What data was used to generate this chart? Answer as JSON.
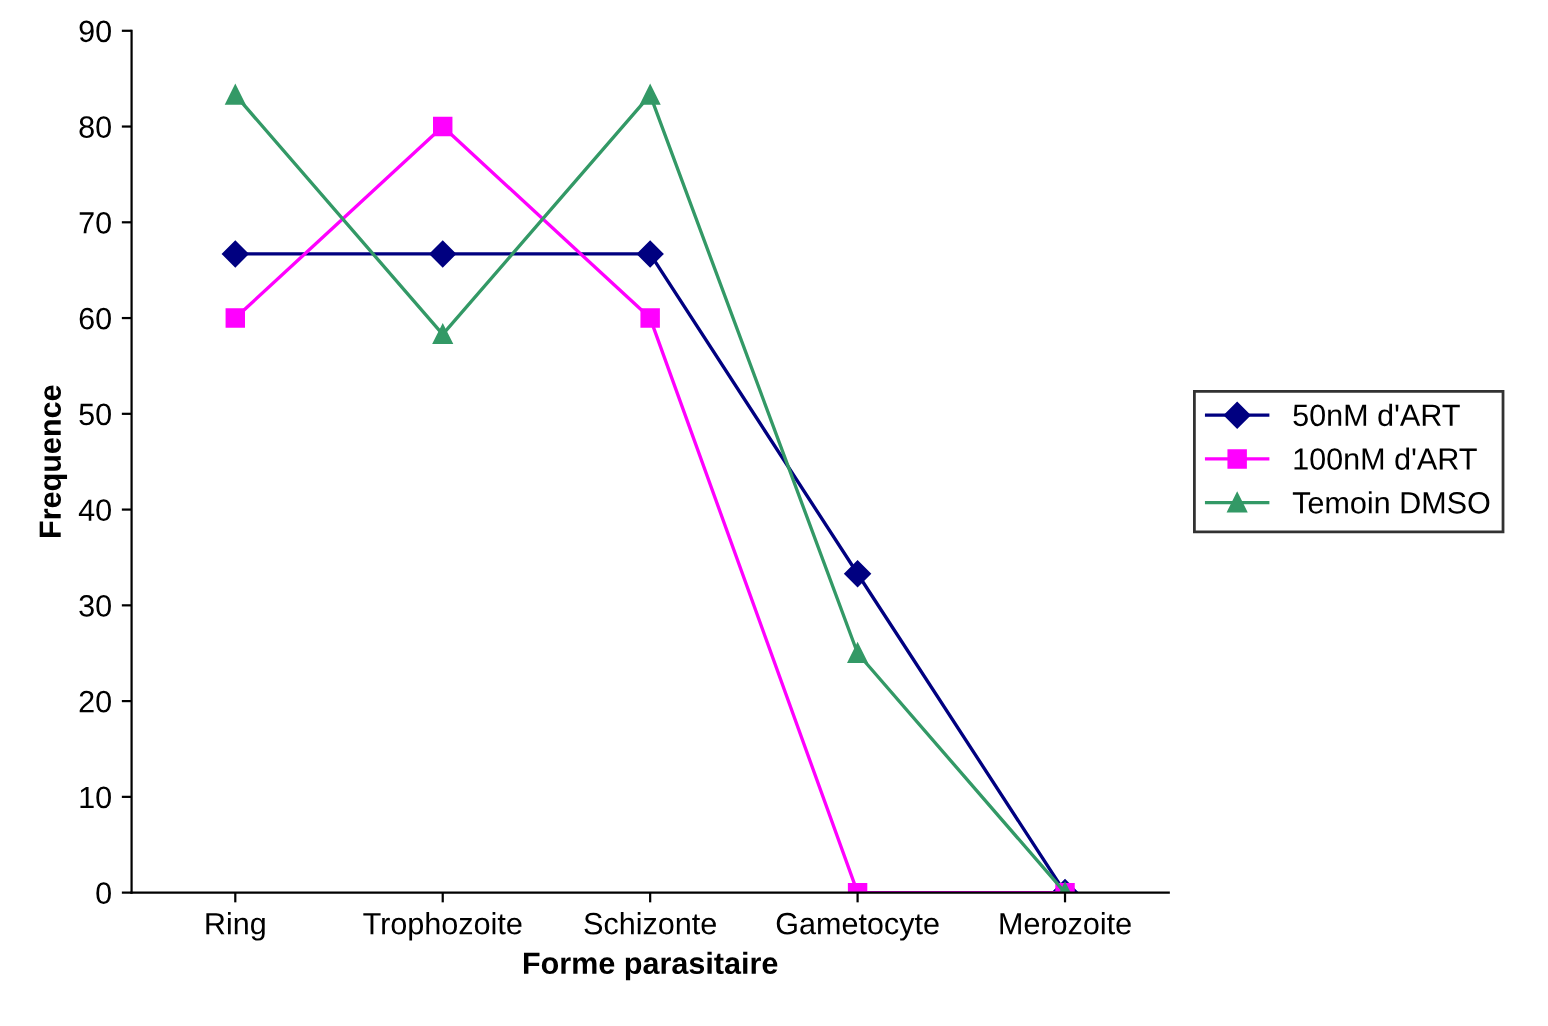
{
  "chart_data": {
    "type": "line",
    "xlabel": "Forme parasitaire",
    "ylabel": "Frequence",
    "categories": [
      "Ring",
      "Trophozoite",
      "Schizonte",
      "Gametocyte",
      "Merozoite"
    ],
    "series": [
      {
        "name": "50nM d'ART",
        "color": "#000080",
        "marker": "diamond",
        "values": [
          66.7,
          66.7,
          66.7,
          33.3,
          0
        ]
      },
      {
        "name": "100nM d'ART",
        "color": "#ff00ff",
        "marker": "square",
        "values": [
          60,
          80,
          60,
          0,
          0
        ]
      },
      {
        "name": "Temoin DMSO",
        "color": "#339966",
        "marker": "triangle",
        "values": [
          83.3,
          58.3,
          83.3,
          25,
          0
        ]
      }
    ],
    "ylim": [
      0,
      90
    ],
    "yticks": [
      0,
      10,
      20,
      30,
      40,
      50,
      60,
      70,
      80,
      90
    ],
    "grid": false,
    "legend": "right"
  }
}
